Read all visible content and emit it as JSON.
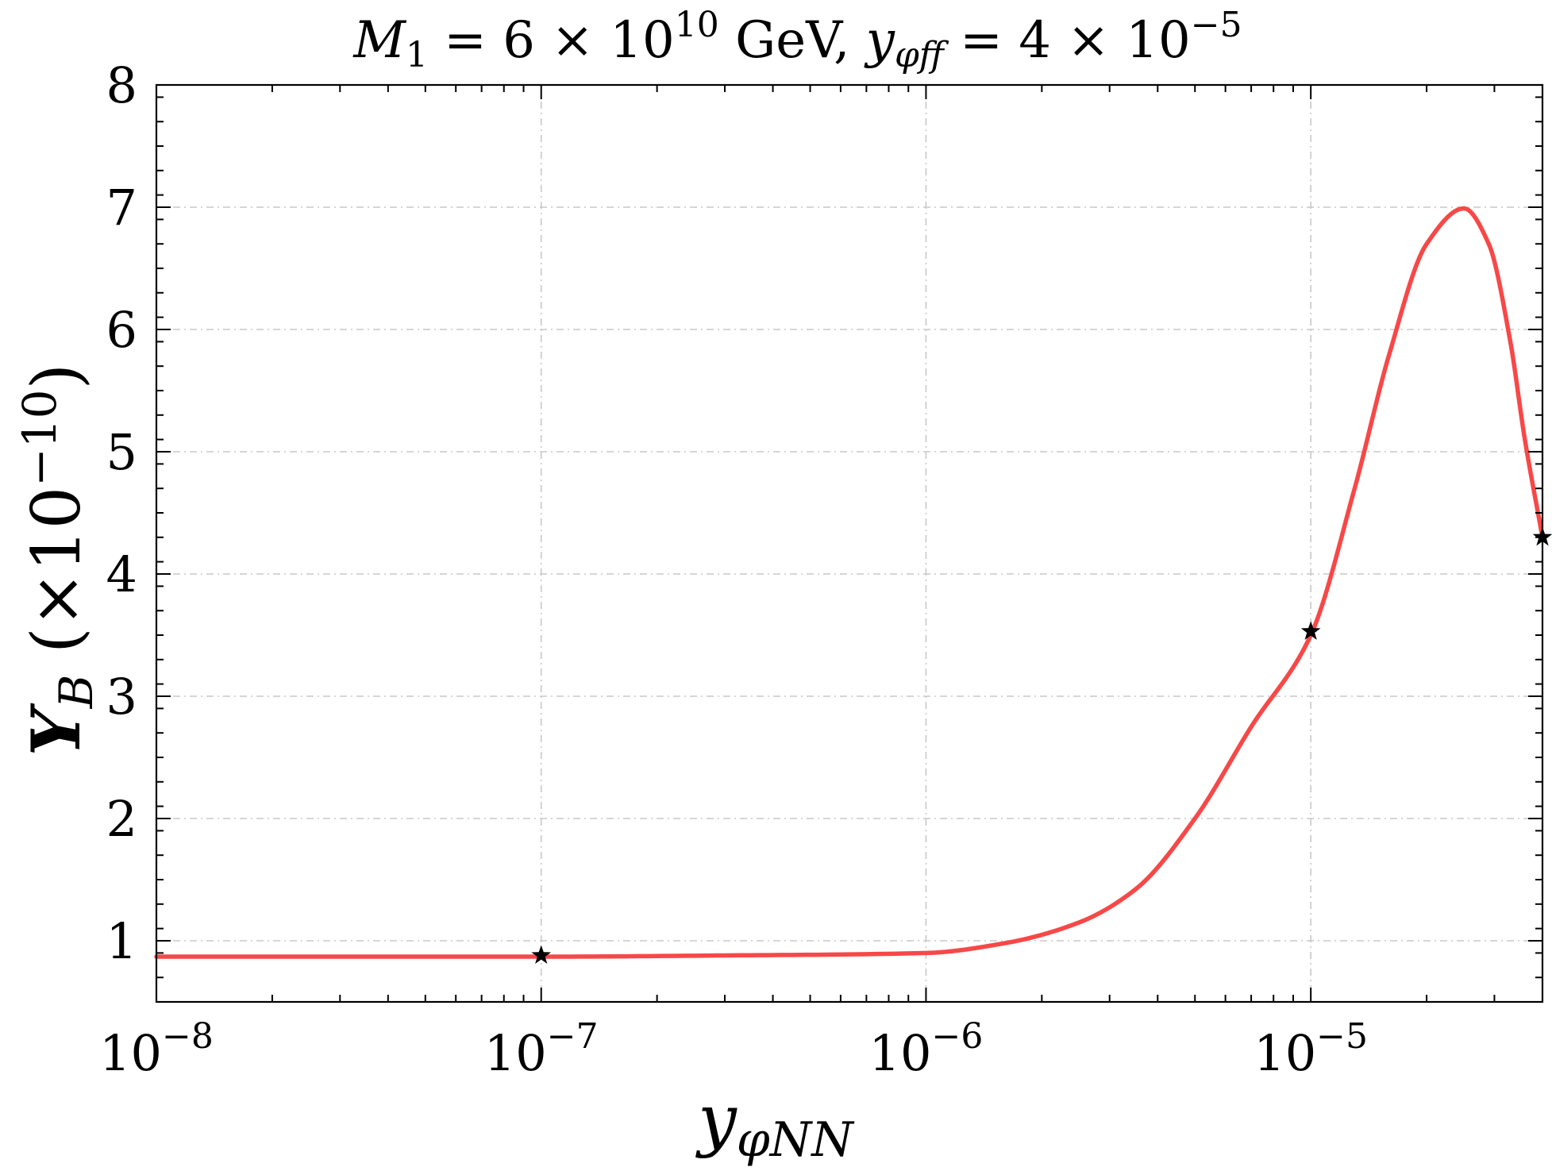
{
  "chart_data": {
    "type": "line",
    "title": {
      "main": "M",
      "main_sub": "1",
      "eq1": " = 6 × 10",
      "exp1": "10",
      "unit": " GeV, ",
      "coup": "y",
      "coup_sub": "φff",
      "eq2": " = 4 × 10",
      "exp2": "−5"
    },
    "xlabel": {
      "main": "y",
      "sub": "φNN"
    },
    "ylabel": {
      "main": "Y",
      "sub": "B",
      "paren": " (×10",
      "exp": "−10",
      "close": ")"
    },
    "x_scale": "log",
    "xlim": [
      1e-08,
      4e-05
    ],
    "ylim": [
      0.5,
      8
    ],
    "grid": true,
    "x_ticks": [
      {
        "value": 1e-08,
        "base": "10",
        "exp": "−8"
      },
      {
        "value": 1e-07,
        "base": "10",
        "exp": "−7"
      },
      {
        "value": 1e-06,
        "base": "10",
        "exp": "−6"
      },
      {
        "value": 1e-05,
        "base": "10",
        "exp": "−5"
      }
    ],
    "y_ticks": [
      1,
      2,
      3,
      4,
      5,
      6,
      7,
      8
    ],
    "series": [
      {
        "color": "#f74848",
        "x": [
          1e-08,
          3e-08,
          1e-07,
          3e-07,
          1e-06,
          1.6e-06,
          2.5e-06,
          3.5e-06,
          5e-06,
          7e-06,
          1e-05,
          1.3e-05,
          1.6e-05,
          2e-05,
          2.5e-05,
          2.9e-05,
          3.3e-05,
          3.6e-05,
          4e-05
        ],
        "y": [
          0.87,
          0.87,
          0.87,
          0.88,
          0.9,
          0.98,
          1.15,
          1.42,
          2.0,
          2.75,
          3.5,
          4.7,
          5.8,
          6.7,
          6.99,
          6.7,
          5.9,
          5.1,
          4.3
        ]
      }
    ],
    "markers": {
      "shape": "star",
      "color": "#000000",
      "points": [
        {
          "x": 1e-07,
          "y": 0.88
        },
        {
          "x": 1e-05,
          "y": 3.53
        },
        {
          "x": 4e-05,
          "y": 4.3
        }
      ]
    }
  }
}
